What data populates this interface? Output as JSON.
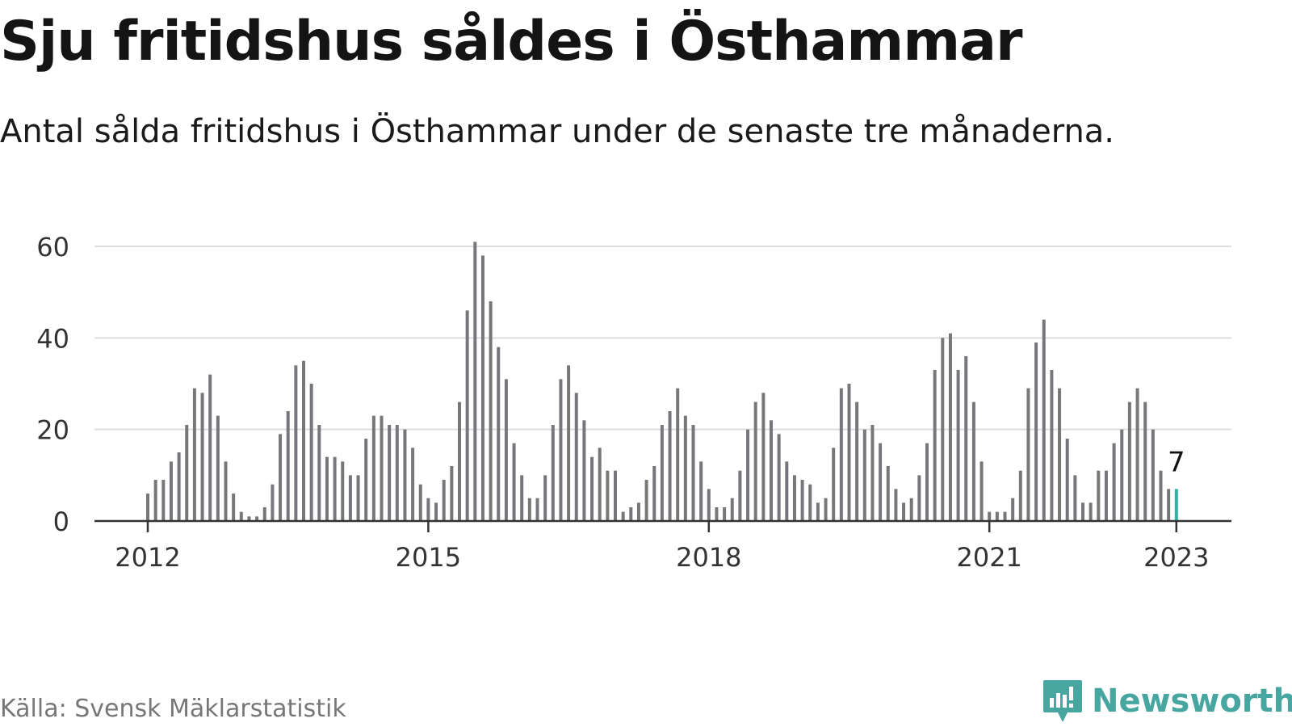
{
  "title": "Sju fritidshus såldes i Östhammar",
  "subtitle": "Antal sålda fritidshus i Östhammar under de senaste tre månaderna.",
  "source": "Källa: Svensk Mäklarstatistik",
  "brand": {
    "name": "Newsworthy",
    "icon": "newsworthy-logo-icon",
    "color": "#48a6a0"
  },
  "colors": {
    "bar": "#77777b",
    "highlight": "#2bb3a3",
    "grid": "#dddddd",
    "axis": "#333333"
  },
  "chart_data": {
    "type": "bar",
    "title": "",
    "xlabel": "",
    "ylabel": "",
    "ylim": [
      0,
      60
    ],
    "yticks": [
      0,
      20,
      40,
      60
    ],
    "xticks": [
      {
        "label": "2012",
        "date": "2012-01"
      },
      {
        "label": "2015",
        "date": "2015-01"
      },
      {
        "label": "2018",
        "date": "2018-01"
      },
      {
        "label": "2021",
        "date": "2021-01"
      },
      {
        "label": "2023",
        "date": "2023-01"
      }
    ],
    "grid": true,
    "start": "2012-01",
    "end": "2023-01",
    "highlight": {
      "date": "2023-01",
      "value": 7,
      "label": "7"
    },
    "values": [
      6,
      9,
      9,
      13,
      15,
      21,
      29,
      28,
      32,
      23,
      13,
      6,
      2,
      1,
      1,
      3,
      8,
      19,
      24,
      34,
      35,
      30,
      21,
      14,
      14,
      13,
      10,
      10,
      18,
      23,
      23,
      21,
      21,
      20,
      16,
      8,
      5,
      4,
      9,
      12,
      26,
      46,
      61,
      58,
      48,
      38,
      31,
      17,
      10,
      5,
      5,
      10,
      21,
      31,
      34,
      28,
      22,
      14,
      16,
      11,
      11,
      2,
      3,
      4,
      9,
      12,
      21,
      24,
      29,
      23,
      21,
      13,
      7,
      3,
      3,
      5,
      11,
      20,
      26,
      28,
      22,
      19,
      13,
      10,
      9,
      8,
      4,
      5,
      16,
      29,
      30,
      26,
      20,
      21,
      17,
      12,
      7,
      4,
      5,
      10,
      17,
      33,
      40,
      41,
      33,
      36,
      26,
      13,
      2,
      2,
      2,
      5,
      11,
      29,
      39,
      44,
      33,
      29,
      18,
      10,
      4,
      4,
      11,
      11,
      17,
      20,
      26,
      29,
      26,
      20,
      11,
      7,
      7
    ]
  }
}
